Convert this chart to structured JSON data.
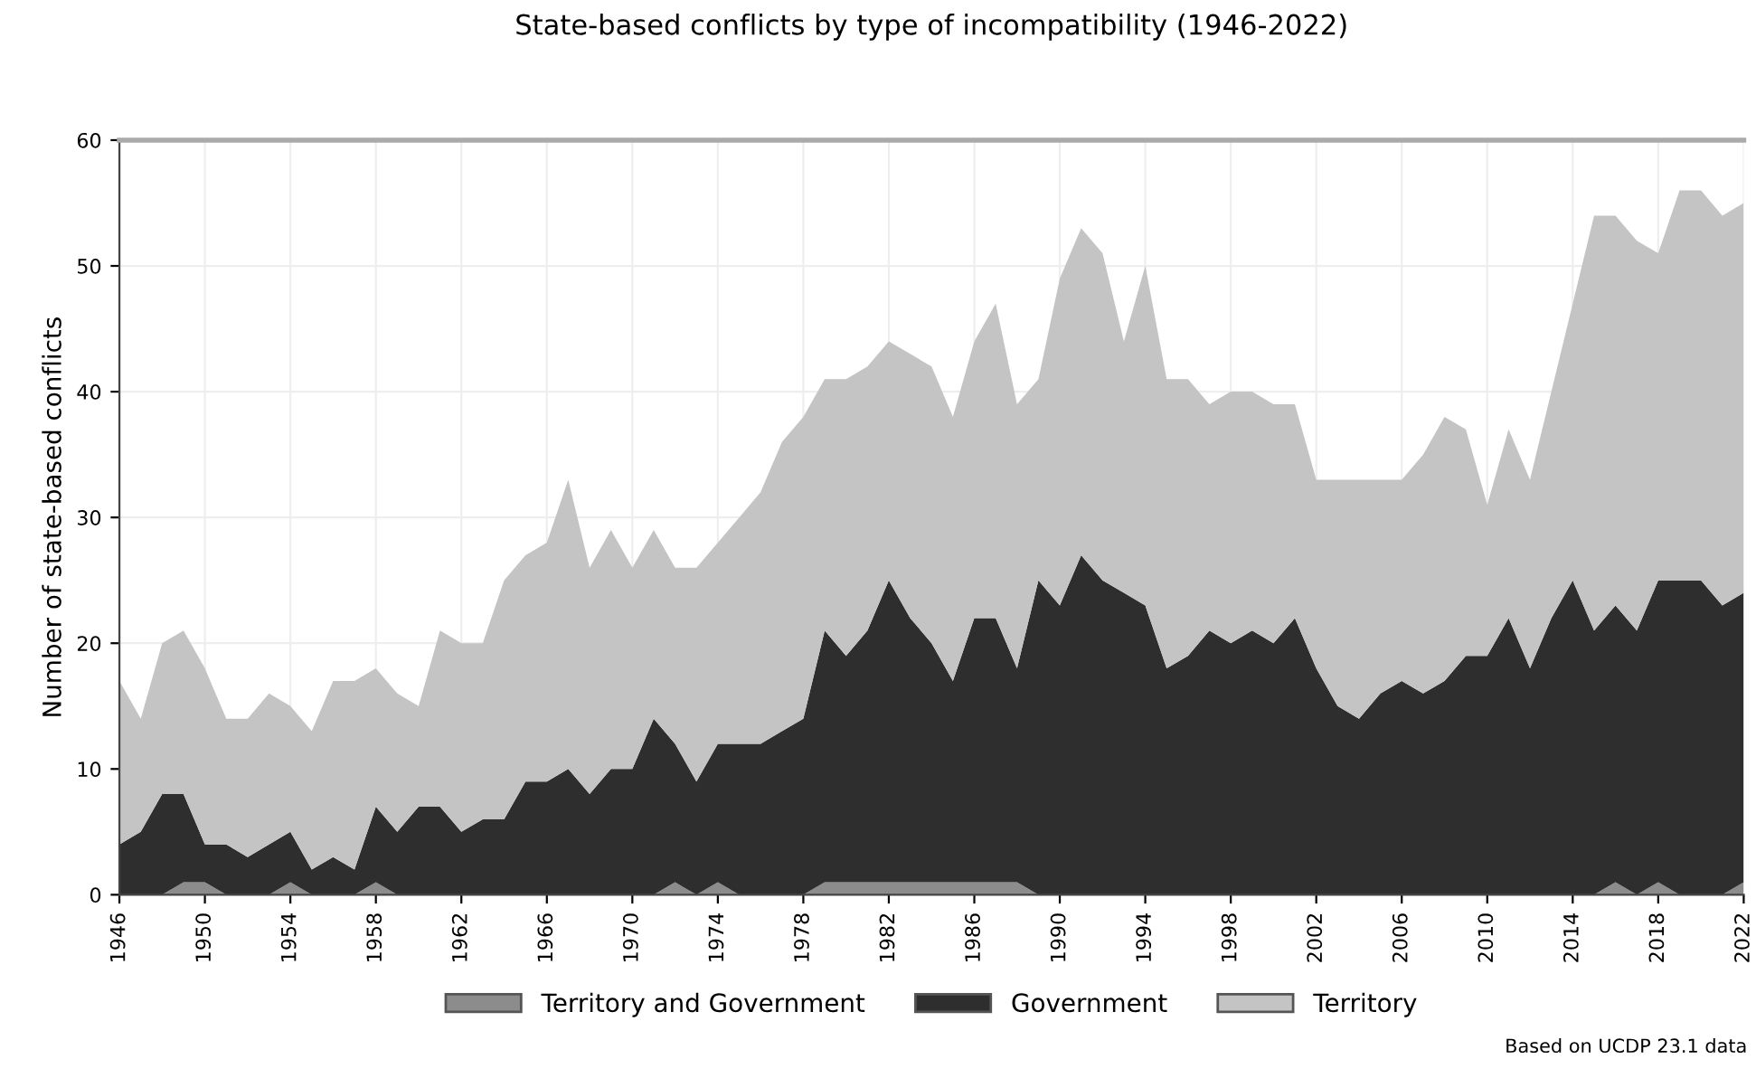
{
  "chart_data": {
    "type": "area",
    "stacked": true,
    "title": "State-based conflicts by type of incompatibility (1946-2022)",
    "ylabel": "Number of state-based conflicts",
    "x": [
      1946,
      1947,
      1948,
      1949,
      1950,
      1951,
      1952,
      1953,
      1954,
      1955,
      1956,
      1957,
      1958,
      1959,
      1960,
      1961,
      1962,
      1963,
      1964,
      1965,
      1966,
      1967,
      1968,
      1969,
      1970,
      1971,
      1972,
      1973,
      1974,
      1975,
      1976,
      1977,
      1978,
      1979,
      1980,
      1981,
      1982,
      1983,
      1984,
      1985,
      1986,
      1987,
      1988,
      1989,
      1990,
      1991,
      1992,
      1993,
      1994,
      1995,
      1996,
      1997,
      1998,
      1999,
      2000,
      2001,
      2002,
      2003,
      2004,
      2005,
      2006,
      2007,
      2008,
      2009,
      2010,
      2011,
      2012,
      2013,
      2014,
      2015,
      2016,
      2017,
      2018,
      2019,
      2020,
      2021,
      2022
    ],
    "series": [
      {
        "name": "Territory and Government",
        "color": "#8c8c8c",
        "values": [
          0,
          0,
          0,
          1,
          1,
          0,
          0,
          0,
          1,
          0,
          0,
          0,
          1,
          0,
          0,
          0,
          0,
          0,
          0,
          0,
          0,
          0,
          0,
          0,
          0,
          0,
          1,
          0,
          1,
          0,
          0,
          0,
          0,
          1,
          1,
          1,
          1,
          1,
          1,
          1,
          1,
          1,
          1,
          0,
          0,
          0,
          0,
          0,
          0,
          0,
          0,
          0,
          0,
          0,
          0,
          0,
          0,
          0,
          0,
          0,
          0,
          0,
          0,
          0,
          0,
          0,
          0,
          0,
          0,
          0,
          1,
          0,
          1,
          0,
          0,
          0,
          1
        ]
      },
      {
        "name": "Government",
        "color": "#2e2e2e",
        "values": [
          4,
          5,
          8,
          7,
          3,
          4,
          3,
          4,
          4,
          2,
          3,
          2,
          6,
          5,
          7,
          7,
          5,
          6,
          6,
          9,
          9,
          10,
          8,
          10,
          10,
          14,
          11,
          9,
          11,
          12,
          12,
          13,
          14,
          20,
          18,
          20,
          24,
          21,
          19,
          16,
          21,
          21,
          17,
          25,
          23,
          27,
          25,
          24,
          23,
          18,
          19,
          21,
          20,
          21,
          20,
          22,
          18,
          15,
          14,
          16,
          17,
          16,
          17,
          19,
          19,
          22,
          18,
          22,
          25,
          21,
          22,
          21,
          24,
          25,
          25,
          23,
          23
        ]
      },
      {
        "name": "Territory",
        "color": "#c4c4c4",
        "values": [
          13,
          9,
          12,
          13,
          14,
          10,
          11,
          12,
          10,
          11,
          14,
          15,
          11,
          11,
          8,
          14,
          15,
          14,
          19,
          18,
          19,
          23,
          18,
          19,
          16,
          15,
          14,
          17,
          16,
          18,
          20,
          23,
          24,
          20,
          22,
          21,
          19,
          21,
          22,
          21,
          22,
          25,
          21,
          16,
          26,
          26,
          26,
          20,
          27,
          23,
          22,
          18,
          20,
          19,
          19,
          17,
          15,
          18,
          19,
          17,
          16,
          19,
          21,
          18,
          12,
          15,
          15,
          18,
          22,
          33,
          31,
          31,
          26,
          31,
          31,
          31,
          31
        ]
      }
    ],
    "xlim": [
      1946,
      2022
    ],
    "xticks": [
      1946,
      1950,
      1954,
      1958,
      1962,
      1966,
      1970,
      1974,
      1978,
      1982,
      1986,
      1990,
      1994,
      1998,
      2002,
      2006,
      2010,
      2014,
      2018,
      2022
    ],
    "ylim": [
      0,
      60
    ],
    "yticks": [
      0,
      10,
      20,
      30,
      40,
      50,
      60
    ],
    "grid": true,
    "legend": "bottom",
    "annotations": [
      "Based on UCDP 23.1 data"
    ]
  }
}
